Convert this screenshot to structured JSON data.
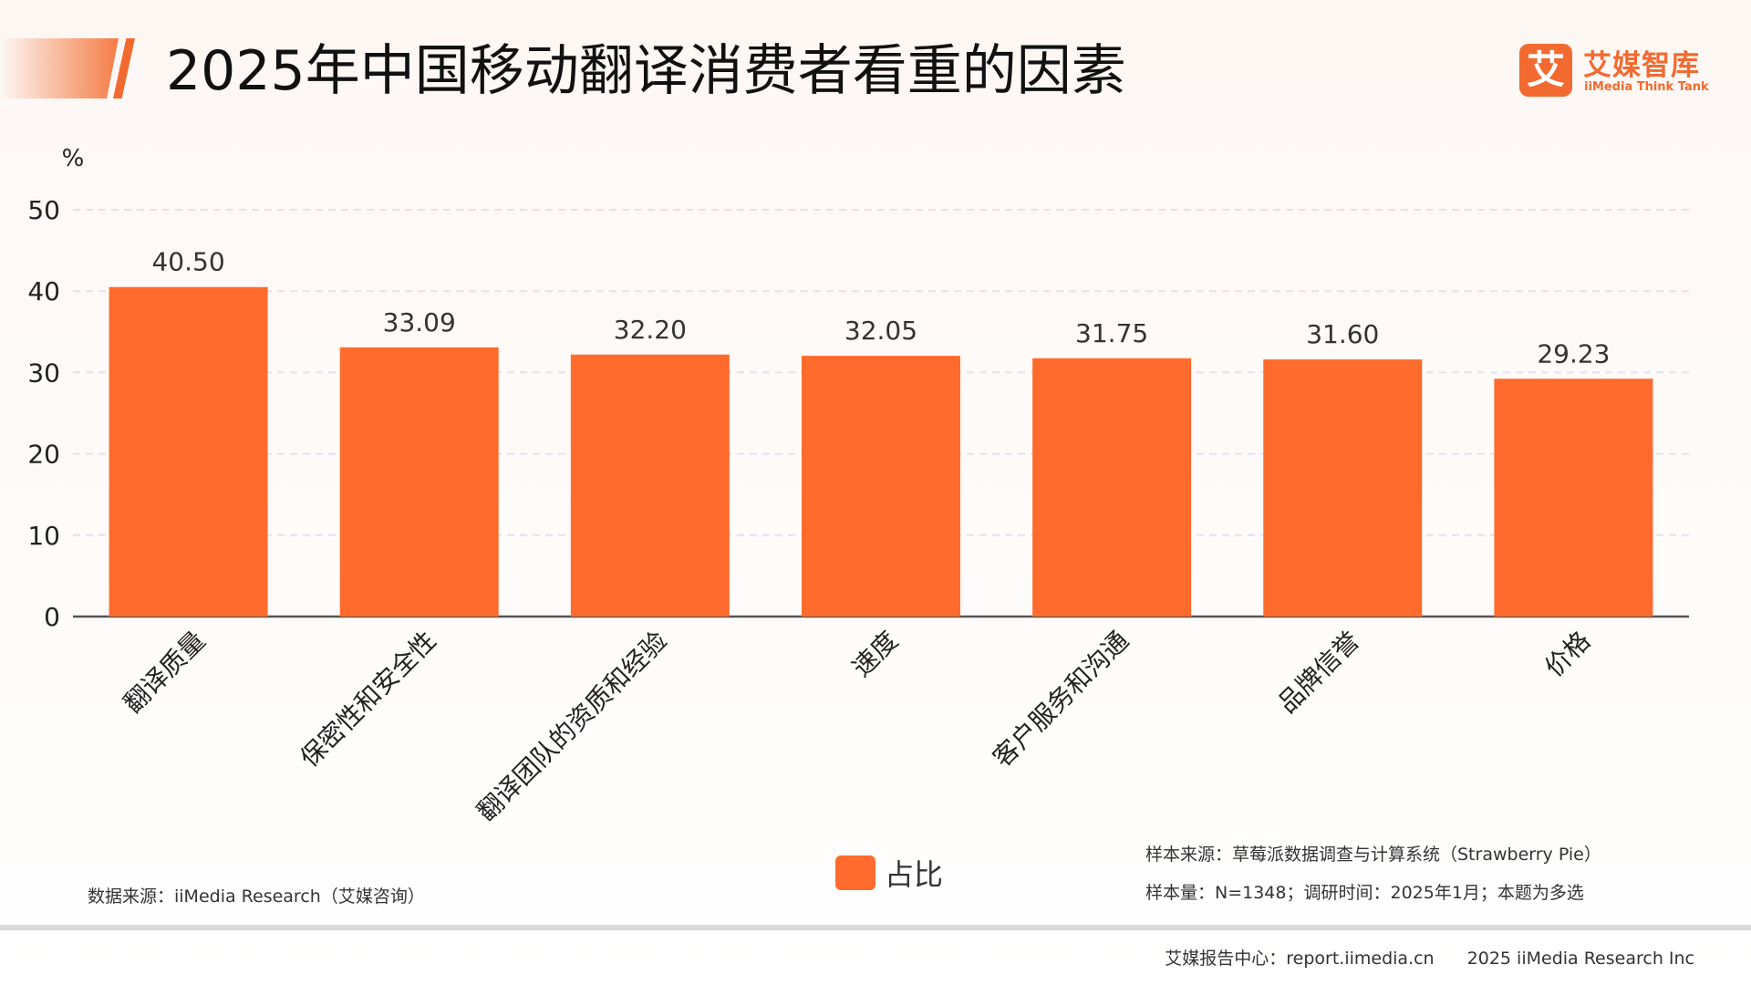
{
  "header": {
    "title": "2025年中国移动翻译消费者看重的因素",
    "logo_mark": "艾",
    "logo_cn": "艾媒智库",
    "logo_en": "iiMedia Think Tank"
  },
  "chart_data": {
    "type": "bar",
    "title": "2025年中国移动翻译消费者看重的因素",
    "ylabel": "%",
    "xlabel": "",
    "ylim": [
      0,
      50
    ],
    "yticks": [
      0,
      10,
      20,
      30,
      40,
      50
    ],
    "grid": true,
    "legend_position": "bottom",
    "categories": [
      "翻译质量",
      "保密性和安全性",
      "翻译团队的资质和经验",
      "速度",
      "客户服务和沟通",
      "品牌信誉",
      "价格"
    ],
    "series": [
      {
        "name": "占比",
        "color": "#ff6b2c",
        "values": [
          40.5,
          33.09,
          32.2,
          32.05,
          31.75,
          31.6,
          29.23
        ],
        "labels": [
          "40.50",
          "33.09",
          "32.20",
          "32.05",
          "31.75",
          "31.60",
          "29.23"
        ]
      }
    ]
  },
  "notes": {
    "data_source": "数据来源：iiMedia Research（艾媒咨询）",
    "sample_source": "样本来源：草莓派数据调查与计算系统（Strawberry Pie）",
    "sample_size": "样本量：N=1348；调研时间：2025年1月；本题为多选"
  },
  "footer": {
    "center": "艾媒报告中心：report.iimedia.cn",
    "copyright": "2025 iiMedia Research Inc"
  },
  "colors": {
    "accent": "#f36a30",
    "bar": "#ff6b2c",
    "grid": "#dfe3ee",
    "axis": "#555555"
  }
}
